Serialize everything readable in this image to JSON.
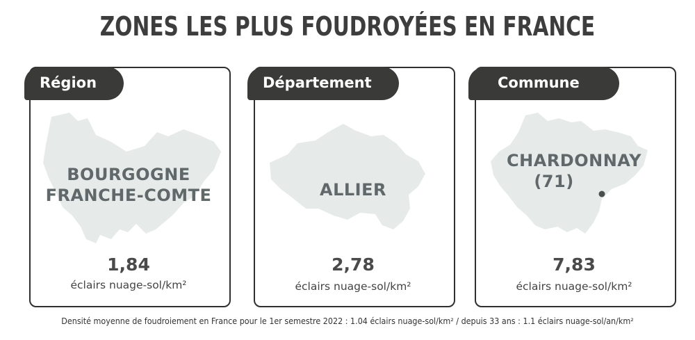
{
  "title": "ZONES LES PLUS FOUDROYÉES EN FRANCE",
  "cards": [
    {
      "tab": "Région",
      "area": [
        "BOURGOGNE",
        "FRANCHE-COMTE"
      ],
      "value": "1,84",
      "unit": "éclairs nuage-sol/km²"
    },
    {
      "tab": "Département",
      "area": [
        "ALLIER"
      ],
      "value": "2,78",
      "unit": "éclairs nuage-sol/km²"
    },
    {
      "tab": "Commune",
      "area": [
        "CHARDONNAY",
        "(71)"
      ],
      "value": "7,83",
      "unit": "éclairs nuage-sol/km²"
    }
  ],
  "footer": "Densité moyenne de foudroiement en France pour le 1er semestre 2022 : 1.04 éclairs nuage-sol/km² / depuis 33 ans : 1.1 éclairs nuage-sol/an/km²",
  "colors": {
    "map_fill": "#e6ebea",
    "tab_bg": "#3a3a38",
    "label": "#606869",
    "border": "#2f2f2f"
  },
  "icons": {
    "commune_marker": "location-dot-icon"
  }
}
